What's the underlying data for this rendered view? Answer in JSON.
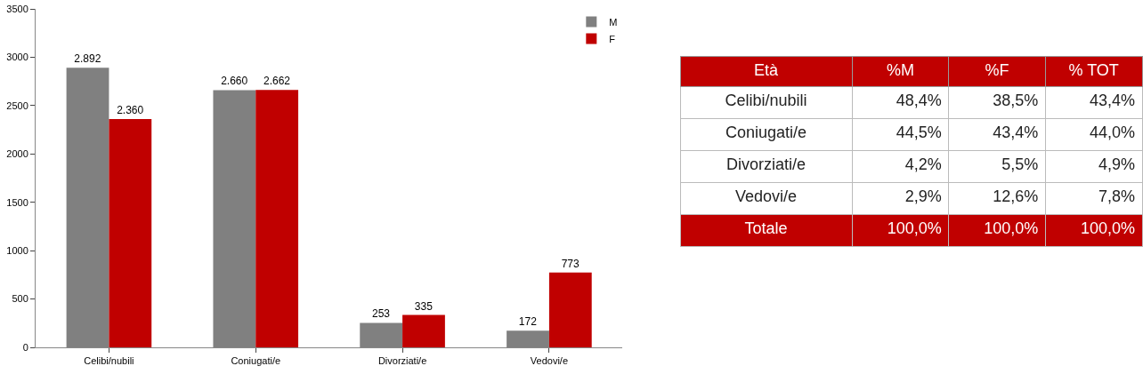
{
  "chart_data": [
    {
      "type": "bar",
      "categories": [
        "Celibi/nubili",
        "Coniugati/e",
        "Divorziati/e",
        "Vedovi/e"
      ],
      "series": [
        {
          "name": "M",
          "color": "#808080",
          "values": [
            2892,
            2660,
            253,
            172
          ],
          "value_labels": [
            "2.892",
            "2.660",
            "253",
            "172"
          ]
        },
        {
          "name": "F",
          "color": "#c00000",
          "values": [
            2360,
            2662,
            335,
            773
          ],
          "value_labels": [
            "2.360",
            "2.662",
            "335",
            "773"
          ]
        }
      ],
      "ylim": [
        0,
        3500
      ],
      "yticks": [
        0,
        500,
        1000,
        1500,
        2000,
        2500,
        3000,
        3500
      ],
      "legend": "top right"
    },
    {
      "type": "other",
      "title": "Età",
      "categories": [
        "Celibi/nubili",
        "Coniugati/e",
        "Divorziati/e",
        "Vedovi/e",
        "Totale"
      ],
      "series": [
        {
          "name": "%M",
          "colors": [
            "#ffffff",
            "#ffffff",
            "#ffffff",
            "#ffffff",
            "#c00000"
          ],
          "values": [
            48.4,
            44.5,
            4.2,
            2.9,
            100.0
          ],
          "value_labels": [
            "48,4%",
            "44,5%",
            "4,2%",
            "2,9%",
            "100,0%"
          ]
        },
        {
          "name": "%F",
          "colors": [
            "#ffffff",
            "#ffffff",
            "#ffffff",
            "#ffffff",
            "#c00000"
          ],
          "values": [
            38.5,
            43.4,
            5.5,
            12.6,
            100.0
          ],
          "value_labels": [
            "38,5%",
            "43,4%",
            "5,5%",
            "12,6%",
            "100,0%"
          ]
        },
        {
          "name": "% TOT",
          "colors": [
            "#ffffff",
            "#ffffff",
            "#ffffff",
            "#ffffff",
            "#c00000"
          ],
          "values": [
            43.4,
            44.0,
            4.9,
            7.8,
            100.0
          ],
          "value_labels": [
            "43,4%",
            "44,0%",
            "4,9%",
            "7,8%",
            "100,0%"
          ]
        }
      ]
    }
  ]
}
